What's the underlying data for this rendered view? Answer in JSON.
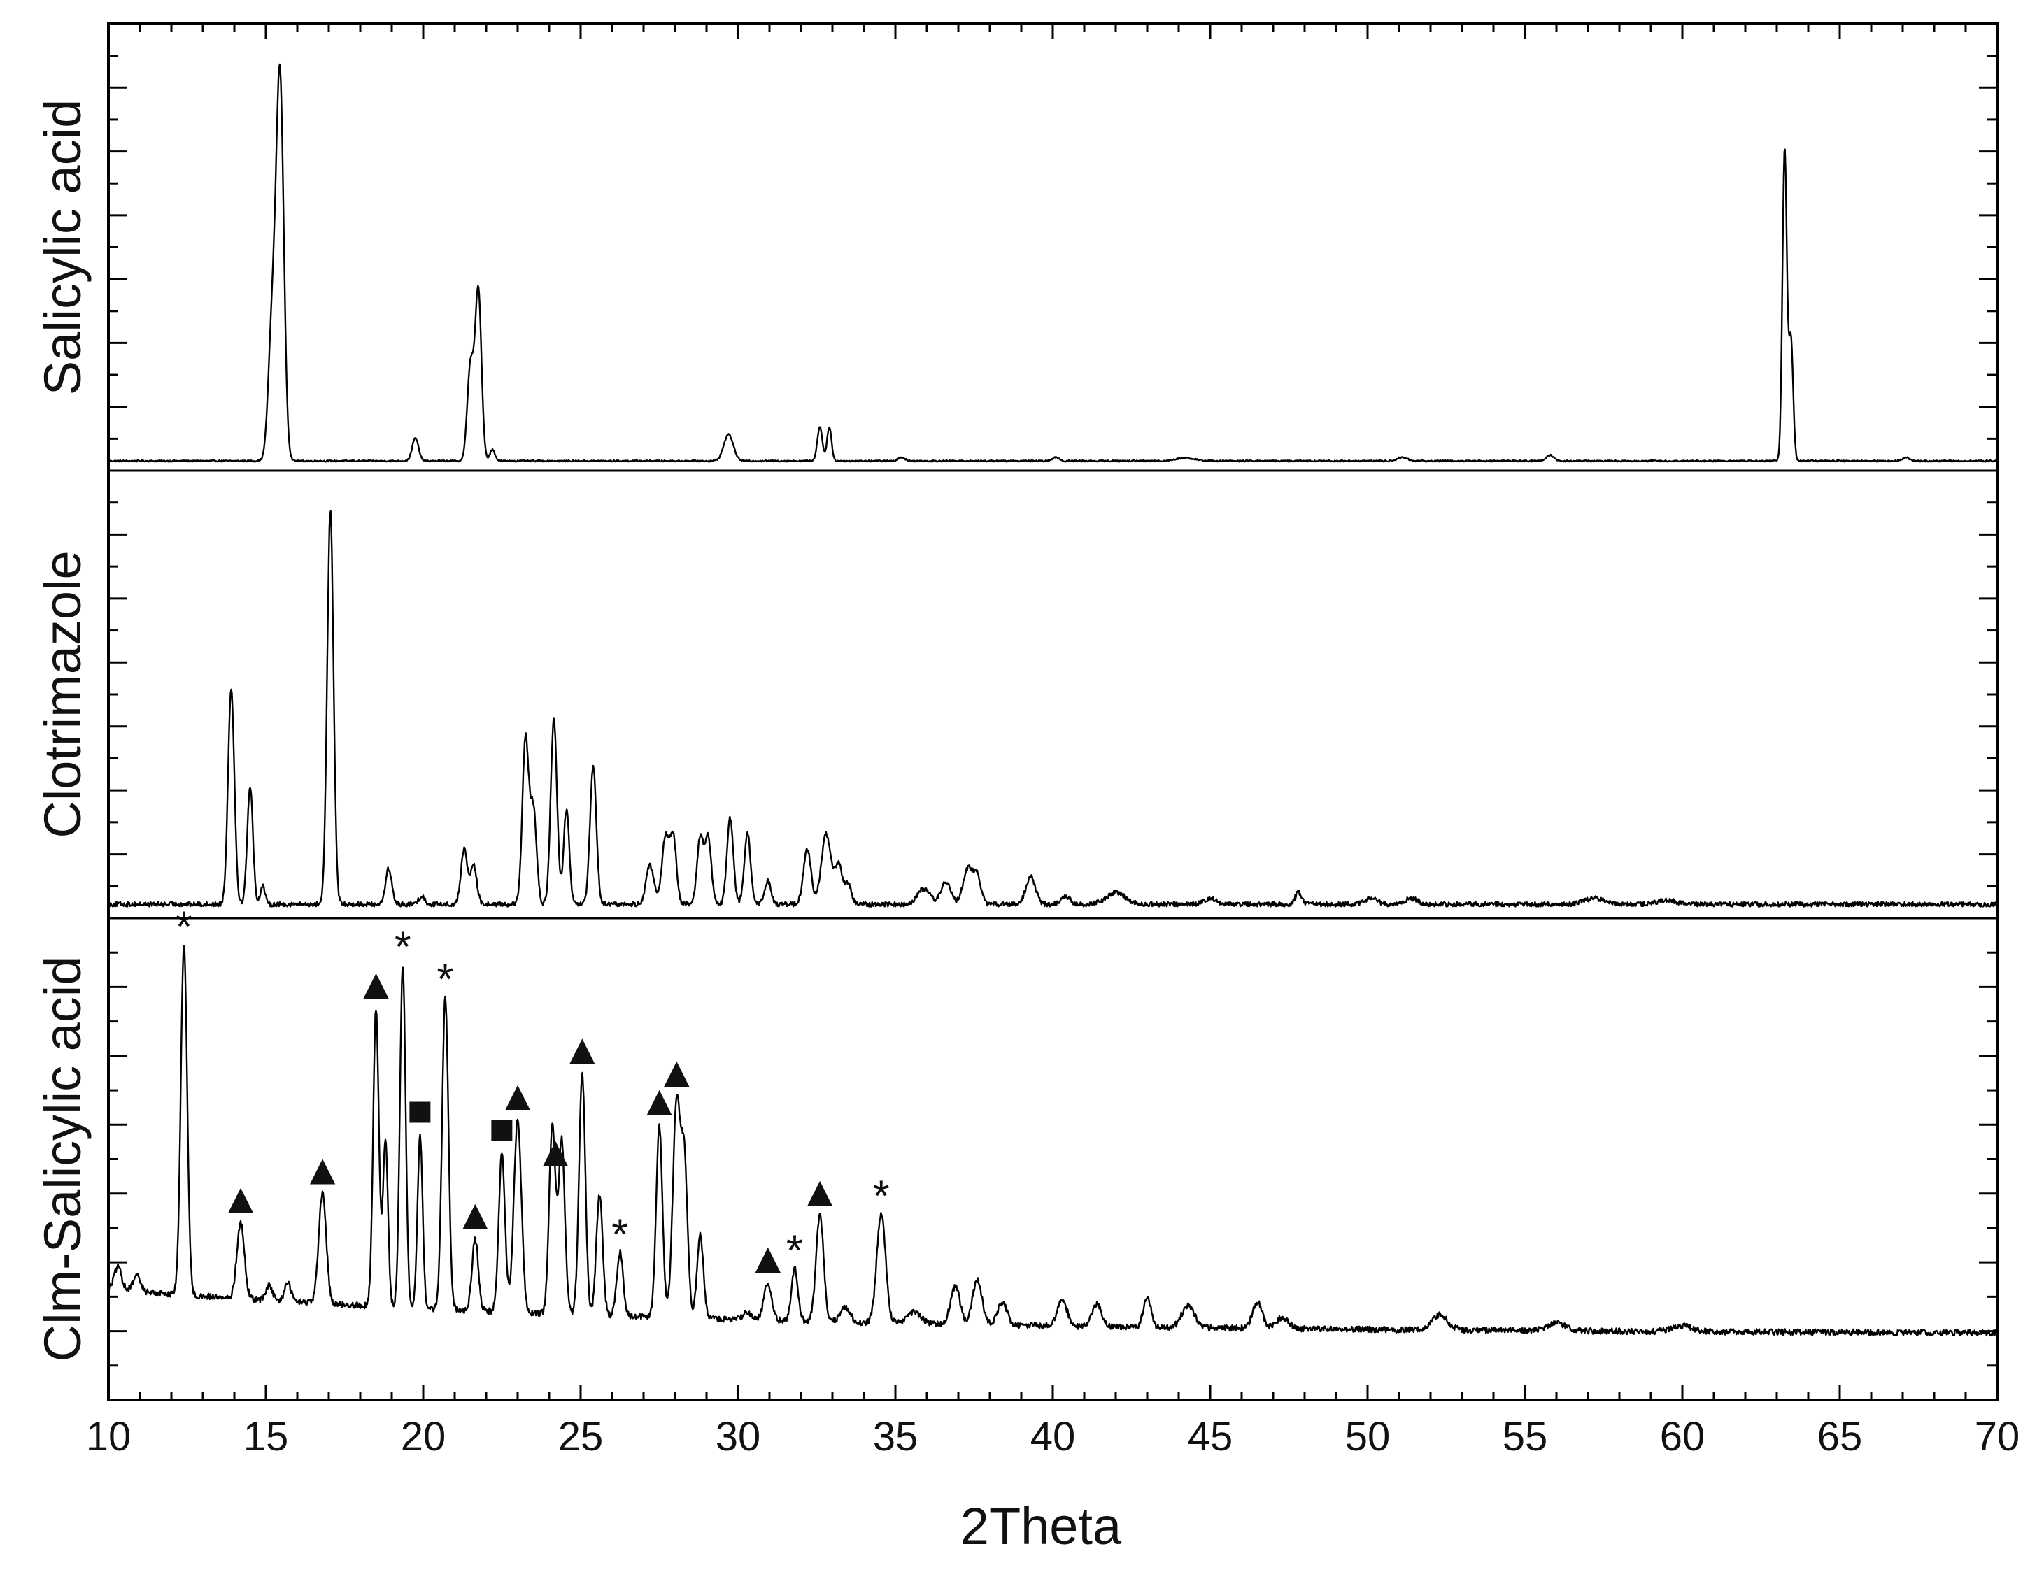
{
  "chart_data": {
    "type": "line",
    "xlabel": "2Theta",
    "xlim": [
      10,
      70
    ],
    "x_ticks": [
      "10",
      "15",
      "20",
      "25",
      "30",
      "35",
      "40",
      "45",
      "50",
      "55",
      "60",
      "65",
      "70"
    ],
    "grid": false,
    "legend": "none",
    "layout": "three stacked panels sharing x axis",
    "series": [
      {
        "name": "Salicylic acid",
        "baseline": 0.02,
        "noise": 0.002,
        "peaks": [
          [
            15.2,
            0.35,
            0.12
          ],
          [
            15.45,
            1.0,
            0.12
          ],
          [
            19.75,
            0.06,
            0.1
          ],
          [
            21.5,
            0.25,
            0.1
          ],
          [
            21.75,
            0.45,
            0.1
          ],
          [
            22.2,
            0.03,
            0.08
          ],
          [
            29.7,
            0.07,
            0.15
          ],
          [
            32.6,
            0.09,
            0.08
          ],
          [
            32.9,
            0.09,
            0.07
          ],
          [
            35.2,
            0.01,
            0.1
          ],
          [
            40.1,
            0.01,
            0.1
          ],
          [
            44.2,
            0.008,
            0.3
          ],
          [
            51.1,
            0.01,
            0.15
          ],
          [
            55.8,
            0.015,
            0.12
          ],
          [
            63.25,
            0.82,
            0.07
          ],
          [
            63.45,
            0.32,
            0.07
          ],
          [
            67.1,
            0.01,
            0.1
          ]
        ]
      },
      {
        "name": "Clotrimazole",
        "baseline": 0.03,
        "noise": 0.006,
        "peaks": [
          [
            13.9,
            0.55,
            0.1
          ],
          [
            14.5,
            0.3,
            0.09
          ],
          [
            14.9,
            0.05,
            0.07
          ],
          [
            17.05,
            1.0,
            0.1
          ],
          [
            18.9,
            0.09,
            0.1
          ],
          [
            19.95,
            0.02,
            0.1
          ],
          [
            21.3,
            0.14,
            0.1
          ],
          [
            21.6,
            0.1,
            0.1
          ],
          [
            23.25,
            0.42,
            0.1
          ],
          [
            23.5,
            0.24,
            0.1
          ],
          [
            24.15,
            0.47,
            0.1
          ],
          [
            24.55,
            0.24,
            0.09
          ],
          [
            25.4,
            0.35,
            0.1
          ],
          [
            27.2,
            0.1,
            0.12
          ],
          [
            27.7,
            0.17,
            0.12
          ],
          [
            27.95,
            0.16,
            0.1
          ],
          [
            28.8,
            0.17,
            0.1
          ],
          [
            29.05,
            0.17,
            0.1
          ],
          [
            29.75,
            0.22,
            0.1
          ],
          [
            30.3,
            0.18,
            0.1
          ],
          [
            30.95,
            0.06,
            0.1
          ],
          [
            32.2,
            0.14,
            0.12
          ],
          [
            32.8,
            0.18,
            0.15
          ],
          [
            33.2,
            0.1,
            0.12
          ],
          [
            33.5,
            0.05,
            0.1
          ],
          [
            35.9,
            0.04,
            0.2
          ],
          [
            36.6,
            0.06,
            0.15
          ],
          [
            37.3,
            0.09,
            0.15
          ],
          [
            37.6,
            0.07,
            0.12
          ],
          [
            39.3,
            0.07,
            0.15
          ],
          [
            40.4,
            0.02,
            0.15
          ],
          [
            42.0,
            0.03,
            0.3
          ],
          [
            45.0,
            0.015,
            0.2
          ],
          [
            47.8,
            0.03,
            0.1
          ],
          [
            50.1,
            0.015,
            0.2
          ],
          [
            51.4,
            0.015,
            0.2
          ],
          [
            57.2,
            0.015,
            0.3
          ],
          [
            59.5,
            0.01,
            0.3
          ]
        ]
      },
      {
        "name": "Clm-Salicylic acid",
        "baseline": 0.1,
        "noise": 0.008,
        "peaks": [
          [
            10.3,
            0.06,
            0.12
          ],
          [
            10.9,
            0.04,
            0.12
          ],
          [
            12.4,
            0.93,
            0.1
          ],
          [
            14.2,
            0.2,
            0.12
          ],
          [
            15.1,
            0.04,
            0.1
          ],
          [
            15.7,
            0.05,
            0.1
          ],
          [
            16.8,
            0.29,
            0.12
          ],
          [
            18.5,
            0.79,
            0.09
          ],
          [
            18.8,
            0.44,
            0.08
          ],
          [
            19.35,
            0.91,
            0.09
          ],
          [
            19.9,
            0.46,
            0.08
          ],
          [
            20.7,
            0.83,
            0.1
          ],
          [
            21.65,
            0.19,
            0.1
          ],
          [
            22.5,
            0.42,
            0.1
          ],
          [
            23.0,
            0.51,
            0.12
          ],
          [
            24.1,
            0.5,
            0.1
          ],
          [
            24.4,
            0.46,
            0.1
          ],
          [
            25.05,
            0.64,
            0.1
          ],
          [
            25.6,
            0.32,
            0.1
          ],
          [
            26.25,
            0.17,
            0.1
          ],
          [
            27.5,
            0.51,
            0.1
          ],
          [
            28.05,
            0.57,
            0.12
          ],
          [
            28.3,
            0.4,
            0.1
          ],
          [
            28.8,
            0.22,
            0.1
          ],
          [
            30.3,
            0.02,
            0.15
          ],
          [
            30.95,
            0.1,
            0.12
          ],
          [
            31.8,
            0.14,
            0.1
          ],
          [
            32.6,
            0.28,
            0.12
          ],
          [
            33.4,
            0.04,
            0.15
          ],
          [
            34.55,
            0.29,
            0.14
          ],
          [
            35.6,
            0.03,
            0.2
          ],
          [
            36.9,
            0.1,
            0.15
          ],
          [
            37.6,
            0.12,
            0.15
          ],
          [
            38.4,
            0.06,
            0.15
          ],
          [
            40.3,
            0.07,
            0.15
          ],
          [
            41.4,
            0.06,
            0.15
          ],
          [
            43.0,
            0.08,
            0.12
          ],
          [
            44.3,
            0.06,
            0.2
          ],
          [
            46.5,
            0.07,
            0.15
          ],
          [
            47.3,
            0.03,
            0.2
          ],
          [
            52.3,
            0.04,
            0.25
          ],
          [
            56.0,
            0.02,
            0.3
          ],
          [
            60.0,
            0.015,
            0.3
          ]
        ],
        "annotations": [
          {
            "x": 12.4,
            "marker": "*"
          },
          {
            "x": 14.2,
            "marker": "▲"
          },
          {
            "x": 16.8,
            "marker": "▲"
          },
          {
            "x": 18.5,
            "marker": "▲"
          },
          {
            "x": 19.35,
            "marker": "*"
          },
          {
            "x": 19.9,
            "marker": "■"
          },
          {
            "x": 20.7,
            "marker": "*"
          },
          {
            "x": 21.65,
            "marker": "▲"
          },
          {
            "x": 22.5,
            "marker": "■"
          },
          {
            "x": 23.0,
            "marker": "▲"
          },
          {
            "x": 24.2,
            "marker": "▲"
          },
          {
            "x": 25.05,
            "marker": "▲"
          },
          {
            "x": 26.25,
            "marker": "*"
          },
          {
            "x": 27.5,
            "marker": "▲"
          },
          {
            "x": 28.05,
            "marker": "▲"
          },
          {
            "x": 30.95,
            "marker": "▲"
          },
          {
            "x": 31.8,
            "marker": "*"
          },
          {
            "x": 32.6,
            "marker": "▲"
          },
          {
            "x": 34.55,
            "marker": "*"
          }
        ]
      }
    ]
  }
}
